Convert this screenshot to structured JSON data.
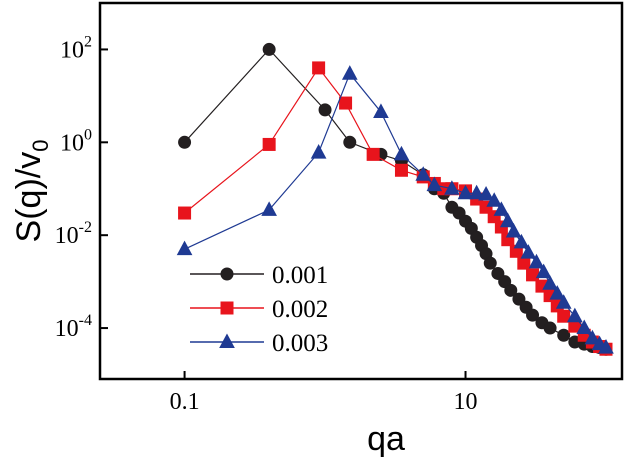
{
  "chart_data": {
    "type": "scatter",
    "title": "",
    "xlabel": "qa",
    "ylabel": {
      "base": "S(q)/v",
      "subscript": "0"
    },
    "xscale": "log",
    "yscale": "log",
    "xlim": [
      0.025,
      130
    ],
    "ylim": [
      8e-06,
      1000
    ],
    "x_ticks": [
      {
        "value": 0.1,
        "label": "0.1"
      },
      {
        "value": 10,
        "label": "10"
      }
    ],
    "y_ticks": [
      {
        "value": 100,
        "base": "10",
        "exp": "2"
      },
      {
        "value": 1,
        "base": "10",
        "exp": "0"
      },
      {
        "value": 0.01,
        "base": "10",
        "exp": "-2"
      },
      {
        "value": 0.0001,
        "base": "10",
        "exp": "-4"
      }
    ],
    "grid": false,
    "legend_position": "bottom-left",
    "series": [
      {
        "name": "0.001",
        "color": "#231f20",
        "marker": "circle",
        "x": [
          0.1,
          0.4,
          1.0,
          1.5,
          2.5,
          3.5,
          5,
          6,
          7,
          8,
          9,
          10,
          11,
          12,
          13,
          14,
          15,
          17,
          19,
          21,
          24,
          27,
          30,
          35,
          40,
          50,
          60,
          70,
          80,
          90,
          100
        ],
        "y": [
          1.0,
          100,
          5.0,
          1.0,
          0.55,
          0.4,
          0.2,
          0.1,
          0.08,
          0.04,
          0.03,
          0.02,
          0.014,
          0.009,
          0.006,
          0.004,
          0.0025,
          0.0015,
          0.001,
          0.00065,
          0.00042,
          0.00028,
          0.00019,
          0.00013,
          0.0001,
          7e-05,
          5e-05,
          4.5e-05,
          4e-05,
          3.8e-05,
          3.5e-05
        ]
      },
      {
        "name": "0.002",
        "color": "#e8141c",
        "marker": "square",
        "x": [
          0.1,
          0.4,
          0.9,
          1.4,
          2.2,
          3.5,
          5,
          6,
          7,
          8,
          10,
          12,
          14,
          16,
          18,
          20,
          23,
          26,
          30,
          35,
          40,
          45,
          50,
          60,
          70,
          80,
          90,
          100
        ],
        "y": [
          0.03,
          0.9,
          40,
          7.0,
          0.55,
          0.25,
          0.18,
          0.13,
          0.1,
          0.1,
          0.09,
          0.06,
          0.04,
          0.025,
          0.015,
          0.008,
          0.0045,
          0.0025,
          0.0014,
          0.0008,
          0.0005,
          0.0003,
          0.00018,
          0.00011,
          7e-05,
          5e-05,
          4e-05,
          3.5e-05
        ]
      },
      {
        "name": "0.003",
        "color": "#1f3a93",
        "marker": "triangle",
        "x": [
          0.1,
          0.4,
          0.9,
          1.5,
          2.5,
          3.5,
          5,
          6,
          8,
          10,
          12,
          14,
          16,
          18,
          20,
          22,
          25,
          28,
          32,
          36,
          40,
          45,
          50,
          60,
          70,
          80,
          90,
          100
        ],
        "y": [
          0.005,
          0.035,
          0.6,
          30,
          4.5,
          0.55,
          0.2,
          0.12,
          0.1,
          0.08,
          0.08,
          0.075,
          0.055,
          0.035,
          0.02,
          0.012,
          0.007,
          0.0042,
          0.0026,
          0.0016,
          0.0009,
          0.00055,
          0.00035,
          0.00018,
          0.0001,
          6e-05,
          4.5e-05,
          3.8e-05
        ]
      }
    ]
  }
}
